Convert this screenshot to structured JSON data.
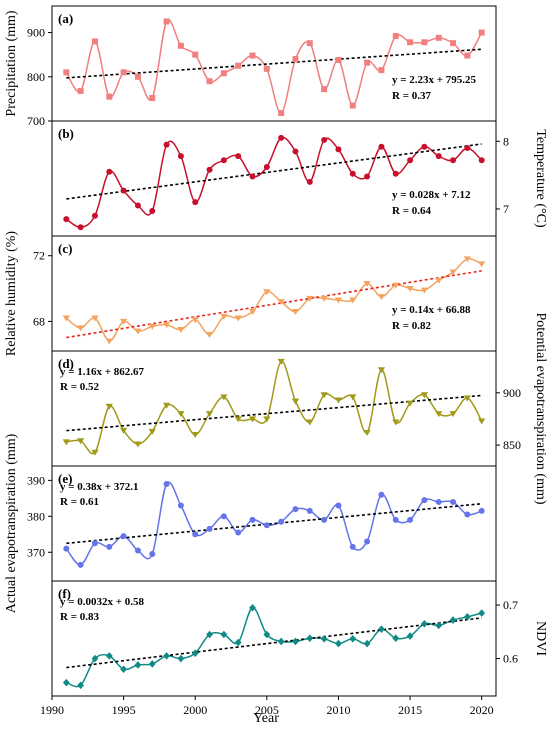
{
  "chart_data": {
    "type": "line",
    "xlabel": "Year",
    "xlim": [
      1990,
      2021
    ],
    "xticks": [
      1990,
      1995,
      2000,
      2005,
      2010,
      2015,
      2020
    ],
    "x": [
      1991,
      1992,
      1993,
      1994,
      1995,
      1996,
      1997,
      1998,
      1999,
      2000,
      2001,
      2002,
      2003,
      2004,
      2005,
      2006,
      2007,
      2008,
      2009,
      2010,
      2011,
      2012,
      2013,
      2014,
      2015,
      2016,
      2017,
      2018,
      2019,
      2020
    ],
    "panels": [
      {
        "tag": "(a)",
        "ylabel": "Precipitation (mm)",
        "ylabel_side": "left",
        "ylim": [
          700,
          960
        ],
        "yticks": [
          700,
          800,
          900
        ],
        "marker": "square",
        "color": "#f08080",
        "trend_color": "#000000",
        "equation": "y = 2.23x + 795.25",
        "r": "R = 0.37",
        "annotation_position": "bottom-right",
        "trend": {
          "slope": 2.23,
          "intercept": 795.25
        },
        "values": [
          810,
          768,
          880,
          755,
          810,
          800,
          752,
          925,
          870,
          850,
          790,
          808,
          825,
          848,
          818,
          718,
          840,
          876,
          772,
          838,
          735,
          832,
          815,
          892,
          878,
          878,
          888,
          876,
          848,
          900
        ]
      },
      {
        "tag": "(b)",
        "ylabel": "Temperature (°C)",
        "ylabel_side": "right",
        "ylim": [
          6.6,
          8.3
        ],
        "yticks": [
          7,
          8
        ],
        "marker": "circle",
        "color": "#c8102e",
        "trend_color": "#000000",
        "equation": "y = 0.028x + 7.12",
        "r": "R = 0.64",
        "annotation_position": "bottom-right",
        "trend": {
          "slope": 0.028,
          "intercept": 7.12
        },
        "values": [
          6.85,
          6.73,
          6.9,
          7.55,
          7.27,
          7.05,
          6.97,
          7.95,
          7.78,
          7.1,
          7.58,
          7.72,
          7.78,
          7.48,
          7.62,
          8.05,
          7.85,
          7.4,
          8.02,
          7.88,
          7.52,
          7.48,
          7.92,
          7.52,
          7.72,
          7.92,
          7.78,
          7.72,
          7.9,
          7.72
        ]
      },
      {
        "tag": "(c)",
        "ylabel": "Relative humidity (%)",
        "ylabel_side": "left",
        "ylim": [
          66.2,
          73.2
        ],
        "yticks": [
          68,
          72
        ],
        "marker": "triangle-down",
        "color": "#f4a460",
        "trend_color": "#e8281e",
        "equation": "y = 0.14x + 66.88",
        "r": "R = 0.82",
        "annotation_position": "bottom-right",
        "trend": {
          "slope": 0.14,
          "intercept": 66.88
        },
        "values": [
          68.2,
          67.6,
          68.2,
          66.8,
          68.0,
          67.4,
          67.7,
          67.8,
          67.5,
          68.1,
          67.2,
          68.3,
          68.2,
          68.6,
          69.8,
          69.2,
          68.6,
          69.4,
          69.4,
          69.3,
          69.3,
          70.3,
          69.5,
          70.2,
          70.0,
          69.9,
          70.5,
          71.0,
          71.8,
          71.5
        ]
      },
      {
        "tag": "(d)",
        "ylabel": "Potential evapotranspiration (mm)",
        "ylabel_side": "right",
        "ylim": [
          830,
          940
        ],
        "yticks": [
          850,
          900
        ],
        "marker": "triangle-down",
        "color": "#a09a18",
        "trend_color": "#000000",
        "equation": "y = 1.16x + 862.67",
        "r": "R = 0.52",
        "annotation_position": "top-left",
        "trend": {
          "slope": 1.16,
          "intercept": 862.67
        },
        "values": [
          853,
          854,
          843,
          887,
          864,
          851,
          863,
          888,
          880,
          860,
          880,
          896,
          875,
          875,
          875,
          930,
          892,
          872,
          898,
          893,
          896,
          862,
          922,
          872,
          890,
          898,
          880,
          880,
          895,
          873
        ]
      },
      {
        "tag": "(e)",
        "ylabel": "Actual evapotranspiration (mm)",
        "ylabel_side": "left",
        "ylim": [
          362,
          394
        ],
        "yticks": [
          370,
          380,
          390
        ],
        "marker": "circle",
        "color": "#6574e8",
        "trend_color": "#000000",
        "equation": "y = 0.38x + 372.1",
        "r": "R = 0.61",
        "annotation_position": "top-left",
        "trend": {
          "slope": 0.38,
          "intercept": 372.1
        },
        "values": [
          371,
          366.5,
          372.5,
          371.5,
          374.5,
          370.5,
          369.5,
          389,
          383,
          375,
          376.5,
          380,
          375.5,
          379,
          377.5,
          378.5,
          382,
          381.5,
          379,
          383,
          371.5,
          373,
          386,
          379,
          379,
          384.5,
          384,
          384,
          380.5,
          381.5
        ]
      },
      {
        "tag": "(f)",
        "ylabel": "NDVI",
        "ylabel_side": "right",
        "ylim": [
          0.53,
          0.745
        ],
        "yticks": [
          0.6,
          0.7
        ],
        "marker": "diamond",
        "color": "#0f8a85",
        "trend_color": "#000000",
        "equation": "y = 0.0032x + 0.58",
        "r": "R = 0.83",
        "annotation_position": "top-left",
        "trend": {
          "slope": 0.0032,
          "intercept": 0.58
        },
        "values": [
          0.555,
          0.55,
          0.6,
          0.605,
          0.58,
          0.588,
          0.59,
          0.605,
          0.6,
          0.61,
          0.645,
          0.645,
          0.63,
          0.695,
          0.645,
          0.632,
          0.632,
          0.638,
          0.637,
          0.628,
          0.637,
          0.628,
          0.655,
          0.638,
          0.642,
          0.665,
          0.662,
          0.672,
          0.678,
          0.685
        ]
      }
    ]
  }
}
